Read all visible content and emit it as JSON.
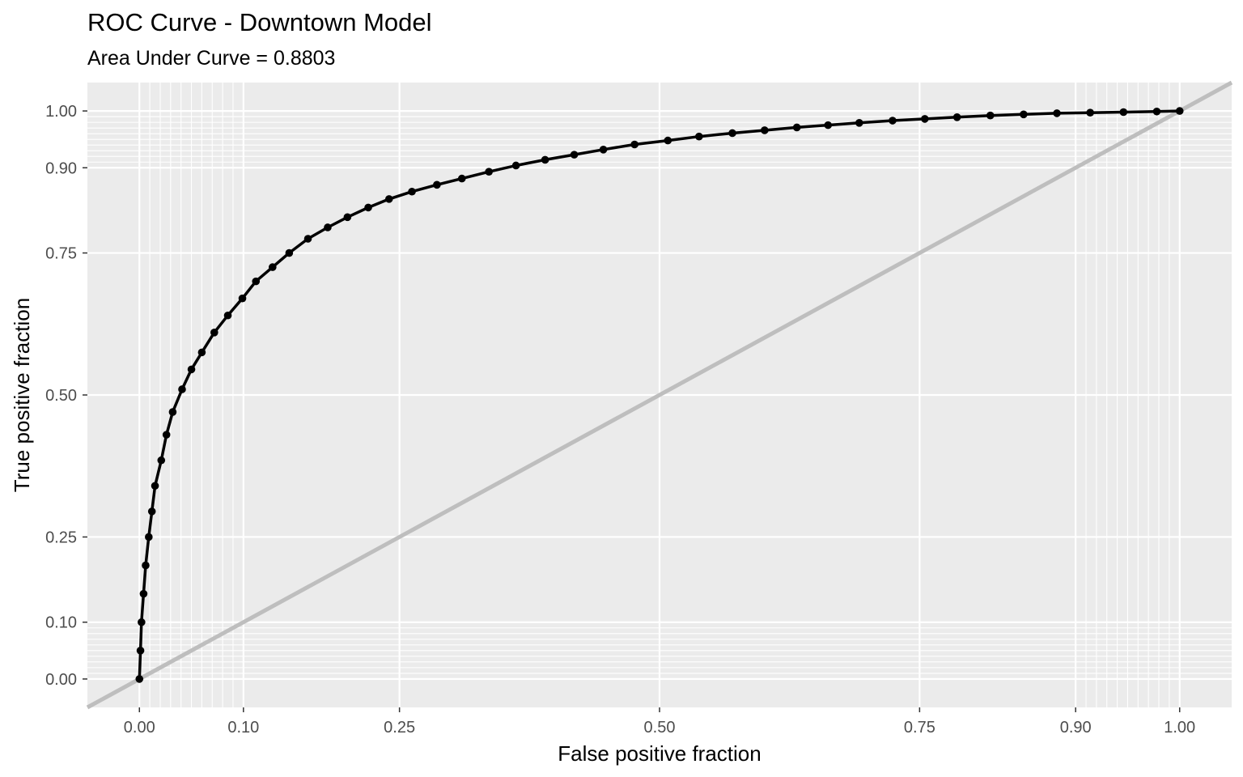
{
  "chart_data": {
    "type": "line",
    "title": "ROC Curve - Downtown Model",
    "subtitle": "Area Under Curve = 0.8803",
    "xlabel": "False positive fraction",
    "ylabel": "True positive fraction",
    "xlim": [
      -0.05,
      1.05
    ],
    "ylim": [
      -0.05,
      1.05
    ],
    "grid": true,
    "legend": "none",
    "x_breaks": [
      0.0,
      0.1,
      0.25,
      0.5,
      0.75,
      0.9,
      1.0
    ],
    "x_tick_labels": [
      "0.00",
      "0.10",
      "0.25",
      "0.50",
      "0.75",
      "0.90",
      "1.00"
    ],
    "y_breaks": [
      0.0,
      0.1,
      0.25,
      0.5,
      0.75,
      0.9,
      1.0
    ],
    "y_tick_labels": [
      "0.00",
      "0.10",
      "0.25",
      "0.50",
      "0.75",
      "0.90",
      "1.00"
    ],
    "x_minor_breaks": [
      0.01,
      0.02,
      0.03,
      0.04,
      0.05,
      0.06,
      0.07,
      0.08,
      0.09,
      0.91,
      0.92,
      0.93,
      0.94,
      0.95,
      0.96,
      0.97,
      0.98,
      0.99
    ],
    "y_minor_breaks": [
      0.01,
      0.02,
      0.03,
      0.04,
      0.05,
      0.06,
      0.07,
      0.08,
      0.09,
      0.91,
      0.92,
      0.93,
      0.94,
      0.95,
      0.96,
      0.97,
      0.98,
      0.99
    ],
    "colors": {
      "panel_background": "#ebebeb",
      "grid": "#ffffff",
      "roc_curve": "#000000",
      "reference_line": "#bebebe"
    },
    "series": [
      {
        "x": [
          0.0,
          0.001,
          0.002,
          0.004,
          0.006,
          0.009,
          0.012,
          0.015,
          0.021,
          0.026,
          0.032,
          0.041,
          0.05,
          0.06,
          0.072,
          0.085,
          0.099,
          0.112,
          0.128,
          0.144,
          0.162,
          0.181,
          0.2,
          0.22,
          0.24,
          0.262,
          0.286,
          0.31,
          0.336,
          0.362,
          0.39,
          0.418,
          0.446,
          0.476,
          0.508,
          0.538,
          0.57,
          0.601,
          0.632,
          0.662,
          0.692,
          0.724,
          0.755,
          0.786,
          0.818,
          0.85,
          0.882,
          0.914,
          0.946,
          0.978,
          1.0
        ],
        "y": [
          0.0,
          0.05,
          0.1,
          0.15,
          0.2,
          0.25,
          0.295,
          0.34,
          0.385,
          0.43,
          0.47,
          0.51,
          0.545,
          0.575,
          0.61,
          0.64,
          0.67,
          0.7,
          0.725,
          0.75,
          0.775,
          0.795,
          0.813,
          0.83,
          0.845,
          0.858,
          0.87,
          0.881,
          0.893,
          0.904,
          0.914,
          0.923,
          0.932,
          0.941,
          0.948,
          0.955,
          0.961,
          0.966,
          0.971,
          0.975,
          0.979,
          0.983,
          0.986,
          0.989,
          0.992,
          0.994,
          0.996,
          0.997,
          0.998,
          0.999,
          1.0
        ]
      },
      {
        "x": [
          -0.05,
          1.05
        ],
        "y": [
          -0.05,
          1.05
        ]
      }
    ]
  }
}
